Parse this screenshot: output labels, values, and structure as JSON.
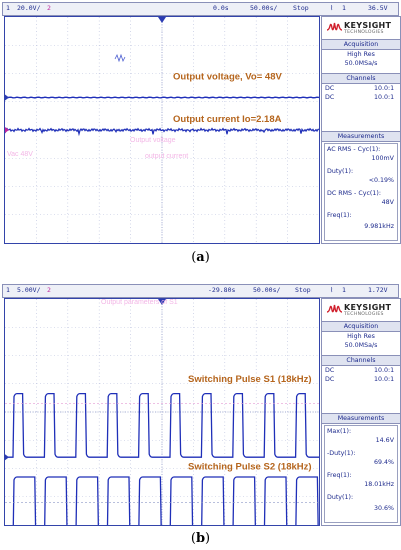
{
  "figure_a": {
    "topbar": {
      "ch1": "1",
      "ch1_scale": "20.0V/",
      "ch2": "2",
      "time_offset": "0.0s",
      "timebase": "50.00s/",
      "mode": "Stop",
      "trig_ch": "1",
      "trig_level": "36.5V"
    },
    "brand": {
      "name": "KEYSIGHT",
      "sub": "TECHNOLOGIES"
    },
    "acquisition": {
      "title": "Acquisition",
      "mode": "High Res",
      "rate": "50.0MSa/s"
    },
    "channels": {
      "title": "Channels",
      "rows": [
        {
          "coupling": "DC",
          "probe": "10.0:1"
        },
        {
          "coupling": "DC",
          "probe": "10.0:1"
        }
      ]
    },
    "measurements": {
      "title": "Measurements",
      "items": [
        {
          "label": "AC RMS - Cyc(1):",
          "value": "100mV"
        },
        {
          "label": "Duty(1):",
          "value": "<0.19%"
        },
        {
          "label": "DC RMS - Cyc(1):",
          "value": "48V"
        },
        {
          "label": "Freq(1):",
          "value": "9.981kHz"
        }
      ]
    },
    "ghost_text": [
      "Output voltage",
      "Vac 48V",
      "output current"
    ],
    "caption_label": "a"
  },
  "figure_b": {
    "topbar": {
      "ch1": "1",
      "ch1_scale": "5.00V/",
      "ch2": "2",
      "time_offset": "-29.80s",
      "timebase": "50.00s/",
      "mode": "Stop",
      "trig_ch": "1",
      "trig_level": "1.72V"
    },
    "brand": {
      "name": "KEYSIGHT",
      "sub": "TECHNOLOGIES"
    },
    "acquisition": {
      "title": "Acquisition",
      "mode": "High Res",
      "rate": "50.0MSa/s"
    },
    "channels": {
      "title": "Channels",
      "rows": [
        {
          "coupling": "DC",
          "probe": "10.0:1"
        },
        {
          "coupling": "DC",
          "probe": "10.0:1"
        }
      ]
    },
    "measurements": {
      "title": "Measurements",
      "items": [
        {
          "label": "Max(1):",
          "value": "14.6V"
        },
        {
          "label": "-Duty(1):",
          "value": "69.4%"
        },
        {
          "label": "Freq(1):",
          "value": "18.01kHz"
        },
        {
          "label": "Duty(1):",
          "value": "30.6%"
        }
      ]
    },
    "ghost_text": [
      "Output parameters of S1"
    ],
    "caption_label": "b"
  },
  "chart_data": [
    {
      "type": "line",
      "title": "",
      "xlabel": "",
      "ylabel": "",
      "grid": true,
      "annotations": [
        "Output voltage, Vo= 48V",
        "Output current Io=2.18A"
      ],
      "series": [
        {
          "name": "Output voltage",
          "trace_color": "#1f2fb8",
          "level_divisions_from_top": 2.85,
          "shape": "flat"
        },
        {
          "name": "Output current",
          "trace_color": "#1f2fb8",
          "level_divisions_from_top": 4.0,
          "shape": "flat-noisy"
        }
      ]
    },
    {
      "type": "line",
      "title": "",
      "xlabel": "",
      "ylabel": "",
      "grid": true,
      "annotations": [
        "Switching Pulse S1 (18kHz)",
        "Switching Pulse S2 (18kHz)"
      ],
      "series": [
        {
          "name": "Switching Pulse S1",
          "trace_color": "#1f2fb8",
          "high_div": 3.35,
          "low_div": 5.6,
          "periods": 10,
          "duty": 0.306,
          "freq_khz": 18.01
        },
        {
          "name": "Switching Pulse S2",
          "trace_color": "#1f2fb8",
          "high_div": 6.3,
          "low_div": 8.7,
          "periods": 10,
          "duty": 0.694,
          "freq_khz": 18.01
        }
      ]
    }
  ]
}
